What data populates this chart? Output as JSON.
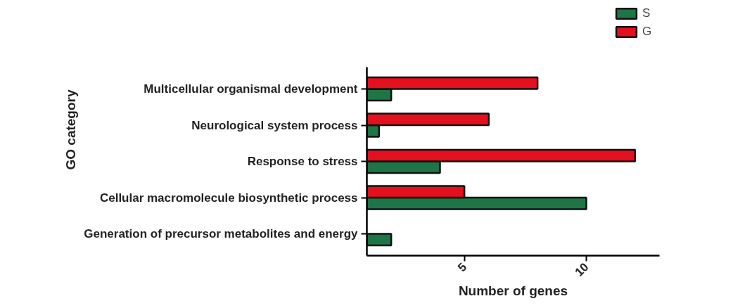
{
  "chart_data": {
    "type": "bar",
    "orientation": "horizontal",
    "xlabel": "Number of genes",
    "ylabel": "GO category",
    "categories": [
      "Multicellular organismal development",
      "Neurological system process",
      "Response to stress",
      "Cellular macromolecule biosynthetic process",
      "Generation of precursor metabolites and energy"
    ],
    "series": [
      {
        "name": "S",
        "color": "#1e7545",
        "values": [
          2,
          1.5,
          4,
          10,
          2
        ]
      },
      {
        "name": "G",
        "color": "#e5101d",
        "values": [
          8,
          6,
          12,
          5,
          null
        ]
      }
    ],
    "xlim": [
      1,
      13
    ],
    "xticks": [
      5,
      10
    ],
    "grid": false,
    "legend": "top right"
  }
}
